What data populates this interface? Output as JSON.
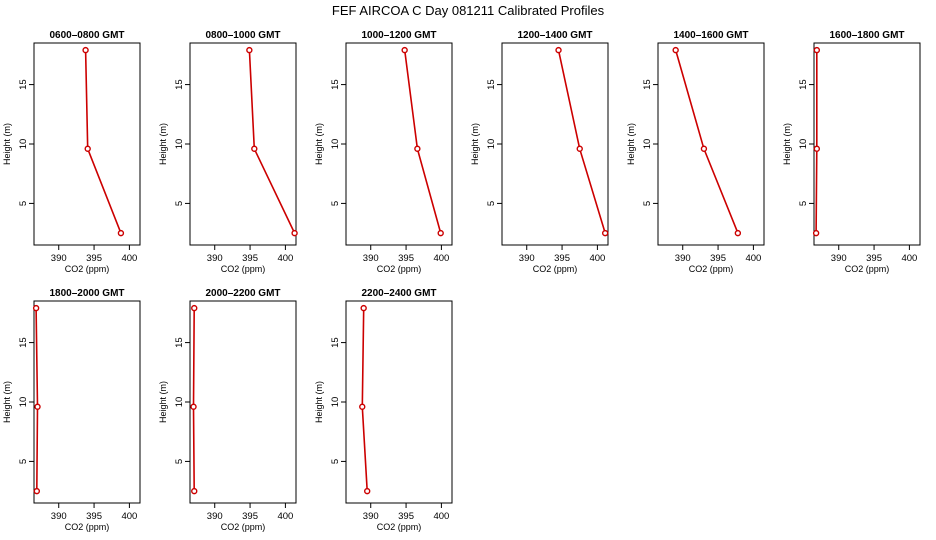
{
  "title": "FEF AIRCOA C  Day 081211  Calibrated Profiles",
  "colors": {
    "series": "#cc0000",
    "axis": "#000000",
    "background": "#ffffff"
  },
  "chart_data": [
    {
      "type": "line",
      "title": "0600–0800 GMT",
      "xlabel": "CO2 (ppm)",
      "ylabel": "Height (m)",
      "xlim": [
        386.5,
        401.5
      ],
      "ylim": [
        1.5,
        18.5
      ],
      "xticks": [
        390,
        395,
        400
      ],
      "yticks": [
        5,
        10,
        15
      ],
      "series": [
        {
          "x": [
            393.8,
            394.1,
            398.8
          ],
          "y": [
            17.9,
            9.6,
            2.5
          ]
        }
      ]
    },
    {
      "type": "line",
      "title": "0800–1000 GMT",
      "xlabel": "CO2 (ppm)",
      "ylabel": "Height (m)",
      "xlim": [
        386.5,
        401.5
      ],
      "ylim": [
        1.5,
        18.5
      ],
      "xticks": [
        390,
        395,
        400
      ],
      "yticks": [
        5,
        10,
        15
      ],
      "series": [
        {
          "x": [
            394.9,
            395.6,
            401.3
          ],
          "y": [
            17.9,
            9.6,
            2.5
          ]
        }
      ]
    },
    {
      "type": "line",
      "title": "1000–1200 GMT",
      "xlabel": "CO2 (ppm)",
      "ylabel": "Height (m)",
      "xlim": [
        386.5,
        401.5
      ],
      "ylim": [
        1.5,
        18.5
      ],
      "xticks": [
        390,
        395,
        400
      ],
      "yticks": [
        5,
        10,
        15
      ],
      "series": [
        {
          "x": [
            394.8,
            396.6,
            399.9
          ],
          "y": [
            17.9,
            9.6,
            2.5
          ]
        }
      ]
    },
    {
      "type": "line",
      "title": "1200–1400 GMT",
      "xlabel": "CO2 (ppm)",
      "ylabel": "Height (m)",
      "xlim": [
        386.5,
        401.5
      ],
      "ylim": [
        1.5,
        18.5
      ],
      "xticks": [
        390,
        395,
        400
      ],
      "yticks": [
        5,
        10,
        15
      ],
      "series": [
        {
          "x": [
            394.5,
            397.5,
            401.1
          ],
          "y": [
            17.9,
            9.6,
            2.5
          ]
        }
      ]
    },
    {
      "type": "line",
      "title": "1400–1600 GMT",
      "xlabel": "CO2 (ppm)",
      "ylabel": "Height (m)",
      "xlim": [
        386.5,
        401.5
      ],
      "ylim": [
        1.5,
        18.5
      ],
      "xticks": [
        390,
        395,
        400
      ],
      "yticks": [
        5,
        10,
        15
      ],
      "series": [
        {
          "x": [
            389.0,
            393.0,
            397.8
          ],
          "y": [
            17.9,
            9.6,
            2.5
          ]
        }
      ]
    },
    {
      "type": "line",
      "title": "1600–1800 GMT",
      "xlabel": "CO2 (ppm)",
      "ylabel": "Height (m)",
      "xlim": [
        386.5,
        401.5
      ],
      "ylim": [
        1.5,
        18.5
      ],
      "xticks": [
        390,
        395,
        400
      ],
      "yticks": [
        5,
        10,
        15
      ],
      "series": [
        {
          "x": [
            386.9,
            386.9,
            386.8
          ],
          "y": [
            17.9,
            9.6,
            2.5
          ]
        }
      ]
    },
    {
      "type": "line",
      "title": "1800–2000 GMT",
      "xlabel": "CO2 (ppm)",
      "ylabel": "Height (m)",
      "xlim": [
        386.5,
        401.5
      ],
      "ylim": [
        1.5,
        18.5
      ],
      "xticks": [
        390,
        395,
        400
      ],
      "yticks": [
        5,
        10,
        15
      ],
      "series": [
        {
          "x": [
            386.8,
            387.0,
            386.9
          ],
          "y": [
            17.9,
            9.6,
            2.5
          ]
        }
      ]
    },
    {
      "type": "line",
      "title": "2000–2200 GMT",
      "xlabel": "CO2 (ppm)",
      "ylabel": "Height (m)",
      "xlim": [
        386.5,
        401.5
      ],
      "ylim": [
        1.5,
        18.5
      ],
      "xticks": [
        390,
        395,
        400
      ],
      "yticks": [
        5,
        10,
        15
      ],
      "series": [
        {
          "x": [
            387.1,
            387.0,
            387.1
          ],
          "y": [
            17.9,
            9.6,
            2.5
          ]
        }
      ]
    },
    {
      "type": "line",
      "title": "2200–2400 GMT",
      "xlabel": "CO2 (ppm)",
      "ylabel": "Height (m)",
      "xlim": [
        386.5,
        401.5
      ],
      "ylim": [
        1.5,
        18.5
      ],
      "xticks": [
        390,
        395,
        400
      ],
      "yticks": [
        5,
        10,
        15
      ],
      "series": [
        {
          "x": [
            389.0,
            388.8,
            389.5
          ],
          "y": [
            17.9,
            9.6,
            2.5
          ]
        }
      ]
    }
  ]
}
